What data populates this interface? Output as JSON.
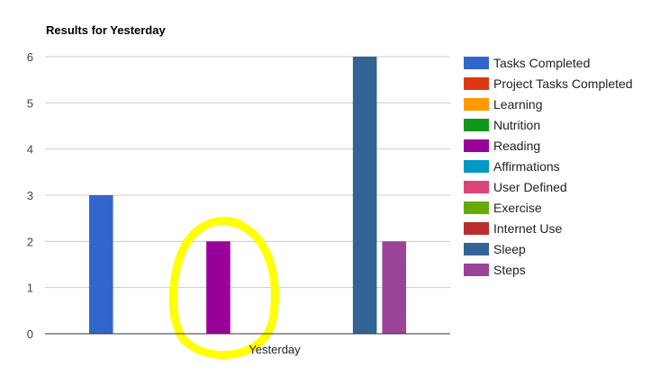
{
  "chart_data": {
    "type": "bar",
    "title": "Results for Yesterday",
    "xlabel": "",
    "ylabel": "",
    "categories": [
      "Yesterday"
    ],
    "ylim": [
      0,
      6
    ],
    "yticks": [
      0,
      1,
      2,
      3,
      4,
      5,
      6
    ],
    "grid": true,
    "legend_position": "right",
    "series": [
      {
        "name": "Tasks Completed",
        "values": [
          3
        ],
        "color": "#3366cc"
      },
      {
        "name": "Project Tasks Completed",
        "values": [
          0
        ],
        "color": "#dc3912"
      },
      {
        "name": "Learning",
        "values": [
          0
        ],
        "color": "#ff9900"
      },
      {
        "name": "Nutrition",
        "values": [
          0
        ],
        "color": "#109618"
      },
      {
        "name": "Reading",
        "values": [
          2
        ],
        "color": "#990099"
      },
      {
        "name": "Affirmations",
        "values": [
          0
        ],
        "color": "#0099c6"
      },
      {
        "name": "User Defined",
        "values": [
          0
        ],
        "color": "#dd4477"
      },
      {
        "name": "Exercise",
        "values": [
          0
        ],
        "color": "#66aa00"
      },
      {
        "name": "Internet Use",
        "values": [
          0
        ],
        "color": "#b82e2e"
      },
      {
        "name": "Sleep",
        "values": [
          6
        ],
        "color": "#316395"
      },
      {
        "name": "Steps",
        "values": [
          2
        ],
        "color": "#994499"
      }
    ],
    "annotation": {
      "shape": "freehand-circle",
      "color": "#ffff00",
      "around_series": "Reading"
    }
  }
}
